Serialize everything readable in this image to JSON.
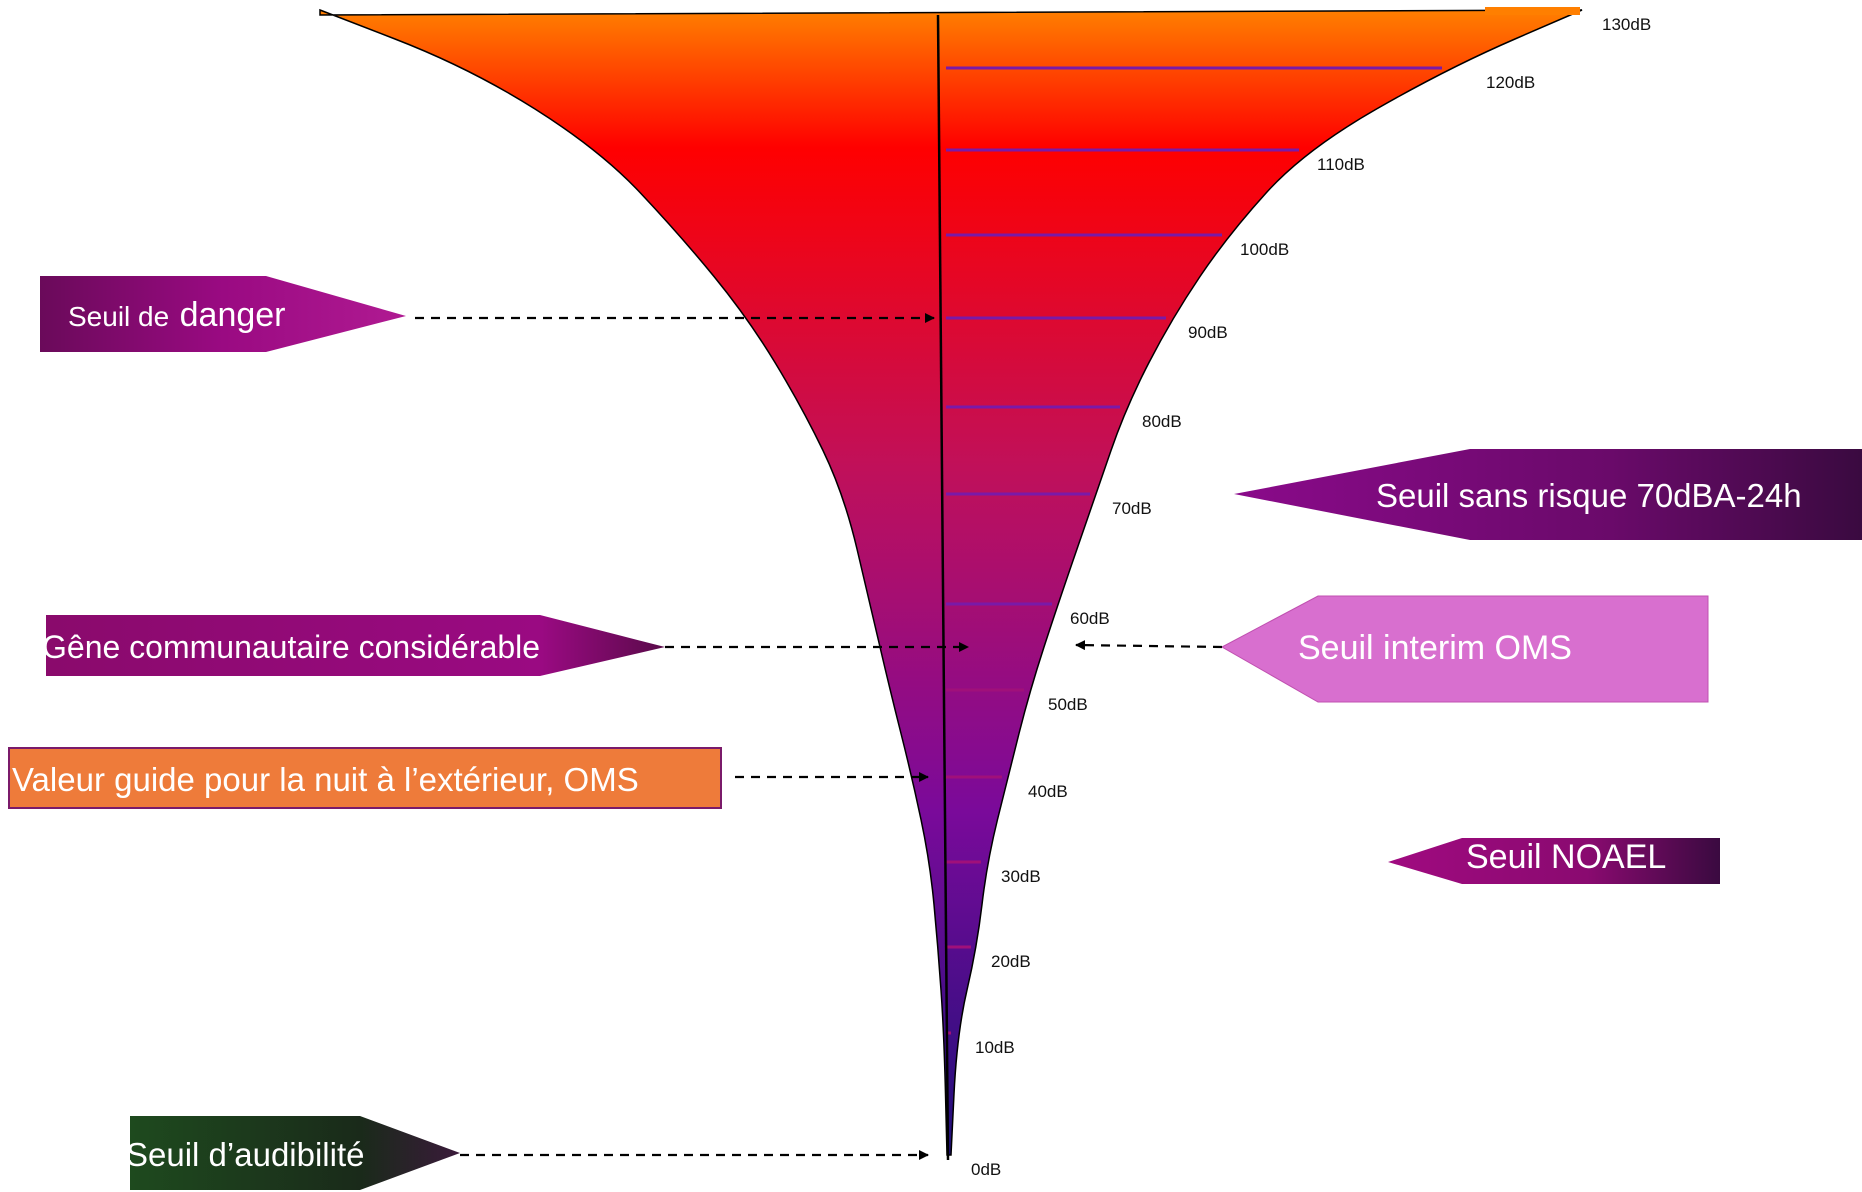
{
  "levels": [
    {
      "label": "0dB",
      "value": 0
    },
    {
      "label": "10dB",
      "value": 10
    },
    {
      "label": "20dB",
      "value": 20
    },
    {
      "label": "30dB",
      "value": 30
    },
    {
      "label": "40dB",
      "value": 40
    },
    {
      "label": "50dB",
      "value": 50
    },
    {
      "label": "60dB",
      "value": 60
    },
    {
      "label": "70dB",
      "value": 70
    },
    {
      "label": "80dB",
      "value": 80
    },
    {
      "label": "90dB",
      "value": 90
    },
    {
      "label": "100dB",
      "value": 100
    },
    {
      "label": "110dB",
      "value": 110
    },
    {
      "label": "120dB",
      "value": 120
    },
    {
      "label": "130dB",
      "value": 130
    }
  ],
  "gradient": {
    "top": "#ff7f00",
    "upper": "#ff0000",
    "middle": "#c0105a",
    "lower": "#7a0a9a",
    "bottom": "#20107a"
  },
  "callouts": {
    "danger": {
      "text_small": "Seuil de",
      "text_large": "danger",
      "level": 90,
      "color": "#8b0a72"
    },
    "gene": {
      "text": "Gêne communautaire considérable",
      "level": 55,
      "color": "#8b0a72"
    },
    "nuit": {
      "text": "Valeur guide pour la nuit à l’extérieur, OMS",
      "level": 40,
      "color": "#ee7b3a"
    },
    "audibilite": {
      "text": "Seuil d’audibilité",
      "level": 0,
      "color": "#1b4a1b"
    },
    "sans_risque": {
      "text": "Seuil sans risque 70dBA-24h",
      "level": 70,
      "color": "#5a0a5e"
    },
    "interim": {
      "text": "Seuil interim OMS",
      "level": 55,
      "color": "#d86fcf"
    },
    "noael": {
      "text": "Seuil NOAEL",
      "level": 32,
      "color": "#8b0a72"
    }
  }
}
